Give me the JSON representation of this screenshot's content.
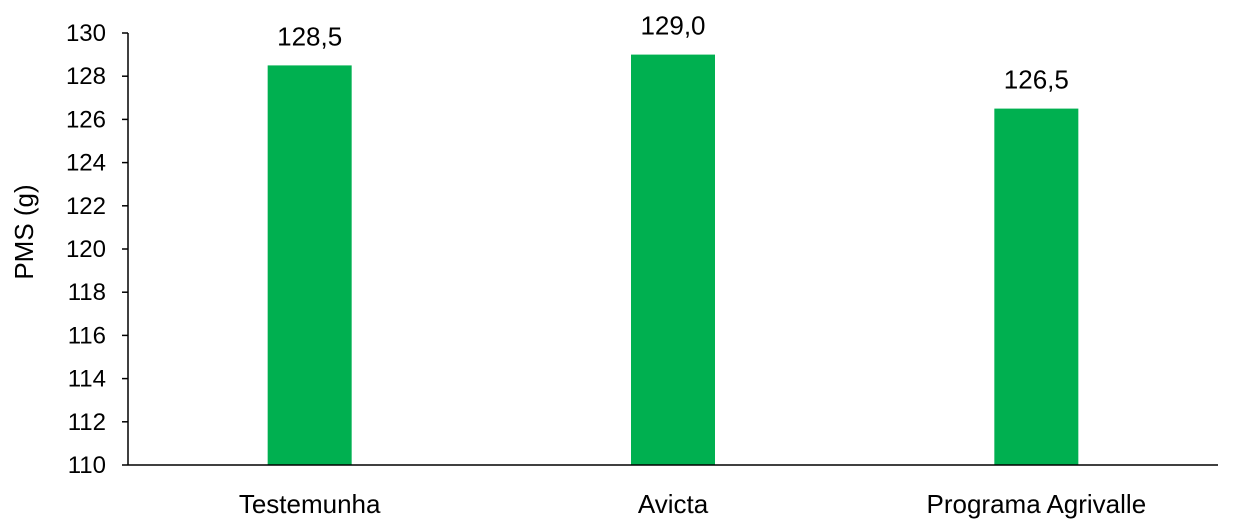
{
  "chart_data": {
    "type": "bar",
    "title": "",
    "xlabel": "",
    "ylabel": "PMS (g)",
    "ylim": [
      110,
      130
    ],
    "yticks": [
      "110",
      "112",
      "114",
      "116",
      "118",
      "120",
      "122",
      "124",
      "126",
      "128",
      "130"
    ],
    "ytick_values": [
      110,
      112,
      114,
      116,
      118,
      120,
      122,
      124,
      126,
      128,
      130
    ],
    "categories": [
      "Testemunha",
      "Avicta",
      "Programa Agrivalle"
    ],
    "values": [
      128.5,
      129.0,
      126.5
    ],
    "value_labels": [
      "128,5",
      "129,0",
      "126,5"
    ],
    "bar_color": "#00B050",
    "axis_color": "#000000",
    "grid": false,
    "legend": false
  }
}
